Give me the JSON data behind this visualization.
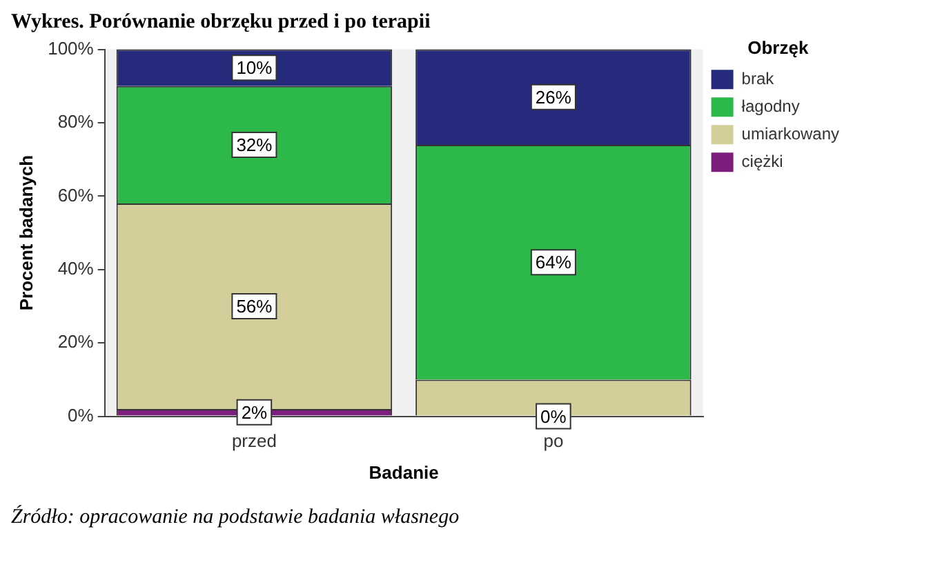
{
  "chart_data": {
    "type": "bar",
    "title": "Wykres. Porównanie obrzęku przed i po terapii",
    "xlabel": "Badanie",
    "ylabel": "Procent badanych",
    "legend_title": "Obrzęk",
    "categories": [
      "przed",
      "po"
    ],
    "stacked": true,
    "ylim": [
      0,
      100
    ],
    "yticks": [
      {
        "value": 0,
        "label": "0%"
      },
      {
        "value": 20,
        "label": "20%"
      },
      {
        "value": 40,
        "label": "40%"
      },
      {
        "value": 60,
        "label": "60%"
      },
      {
        "value": 80,
        "label": "80%"
      },
      {
        "value": 100,
        "label": "100%"
      }
    ],
    "grid": false,
    "legend": "top right",
    "series": [
      {
        "name": "ciężki",
        "color": "#7d1e7f",
        "values": [
          2,
          0
        ],
        "value_labels": [
          "2%",
          null
        ]
      },
      {
        "name": "umiarkowany",
        "color": "#d4cf9a",
        "values": [
          56,
          10
        ],
        "value_labels": [
          "56%",
          null
        ]
      },
      {
        "name": "łagodny",
        "color": "#2db84a",
        "values": [
          32,
          64
        ],
        "value_labels": [
          "32%",
          "64%"
        ]
      },
      {
        "name": "brak",
        "color": "#262a7c",
        "values": [
          10,
          26
        ],
        "value_labels": [
          "10%",
          "26%"
        ]
      }
    ],
    "annotations": [
      {
        "text": "0%",
        "x": "po",
        "y": 0
      },
      "Źródło: opracowanie na podstawie badania własnego"
    ]
  }
}
